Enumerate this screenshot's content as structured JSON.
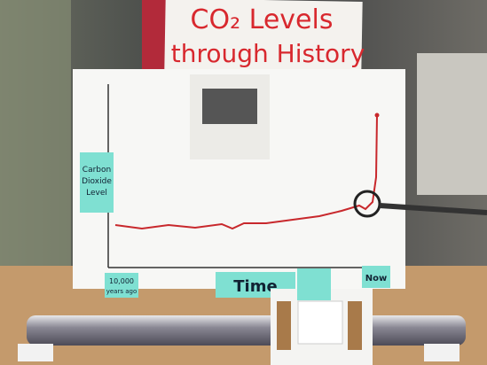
{
  "banner": {
    "lines": [
      "CO₂ Levels",
      "through History"
    ]
  },
  "poster": {
    "y_label": [
      "Carbon",
      "Dioxide",
      "Level"
    ],
    "x_start": [
      "10,000",
      "years ago"
    ],
    "x_label": "Time",
    "x_end": "Now"
  }
}
